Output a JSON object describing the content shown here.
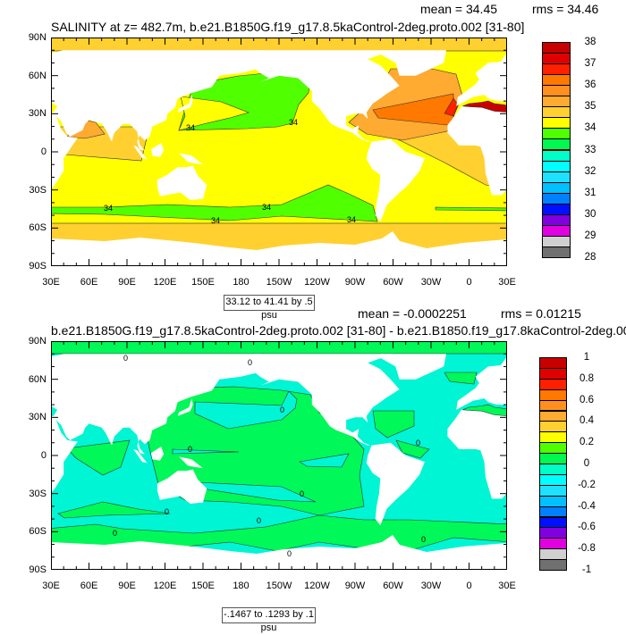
{
  "panels": [
    {
      "title": "SALINITY at z= 482.7m, b.e21.B1850G.f19_g17.8.5kaControl-2deg.proto.002 [31-80]",
      "mean": "mean = 34.45",
      "rms": "rms = 34.46",
      "info_box": "33.12 to 41.41 by .5 psu",
      "contour_label": "34",
      "colorbar_labels": [
        "38",
        "37",
        "36",
        "35",
        "34",
        "33",
        "32",
        "31",
        "30",
        "29",
        "28"
      ]
    },
    {
      "title": "b.e21.B1850G.f19_g17.8.5kaControl-2deg.proto.002 [31-80] - b.e21.B1850.f19_g17.8kaControl-2deg.00",
      "mean": "mean = -0.0002251",
      "rms": "rms = 0.01215",
      "info_box": "-.1467 to .1293 by .1 psu",
      "contour_label": "0",
      "colorbar_labels": [
        "1",
        "0.8",
        "0.6",
        "0.4",
        "0.2",
        "0",
        "-0.2",
        "-0.4",
        "-0.6",
        "-0.8",
        "-1"
      ]
    }
  ],
  "axes": {
    "lat_labels": [
      "90N",
      "60N",
      "30N",
      "0",
      "30S",
      "60S",
      "90S"
    ],
    "lon_labels": [
      "30E",
      "60E",
      "90E",
      "120E",
      "150E",
      "180",
      "150W",
      "120W",
      "90W",
      "60W",
      "30W",
      "0",
      "30E"
    ]
  },
  "palette": [
    "#c80000",
    "#e00000",
    "#ff2000",
    "#ff7800",
    "#ff9020",
    "#ffaa30",
    "#ffd030",
    "#ffff00",
    "#50ff00",
    "#00f850",
    "#00ffc8",
    "#00ffff",
    "#20e0ff",
    "#00c0ff",
    "#0080ff",
    "#0010ff",
    "#8000e0",
    "#e000e0",
    "#d0d0d0",
    "#707070"
  ]
}
